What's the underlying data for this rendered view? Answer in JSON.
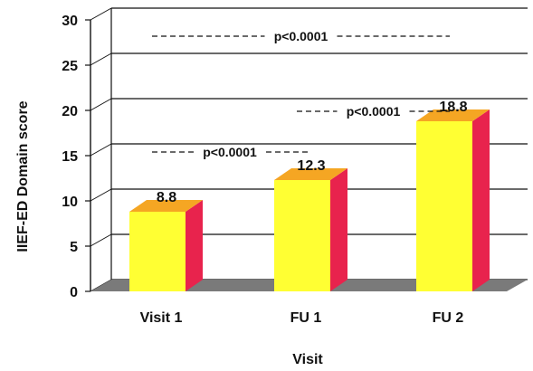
{
  "chart_data": {
    "type": "bar",
    "title": "",
    "xlabel": "Visit",
    "ylabel": "IIEF-ED Domain score",
    "categories": [
      "Visit 1",
      "FU 1",
      "FU 2"
    ],
    "values": [
      8.8,
      12.3,
      18.8
    ],
    "value_labels": [
      "8.8",
      "12.3",
      "18.8"
    ],
    "ylim": [
      0,
      30
    ],
    "yticks": [
      0,
      5,
      10,
      15,
      20,
      25,
      30
    ],
    "grid": true,
    "legend": "none",
    "annotations": [
      {
        "text": "p<0.0001",
        "from": "Visit 1",
        "to": "FU 2",
        "y": 27.5
      },
      {
        "text": "p<0.0001",
        "from": "FU 1",
        "to": "FU 2",
        "y": 19.2
      },
      {
        "text": "p<0.0001",
        "from": "Visit 1",
        "to": "FU 1",
        "y": 14.7
      }
    ],
    "colors": {
      "bar_front": "#ffff33",
      "bar_top": "#f5a623",
      "bar_side": "#e8234d",
      "floor": "#7a7a7a"
    }
  }
}
